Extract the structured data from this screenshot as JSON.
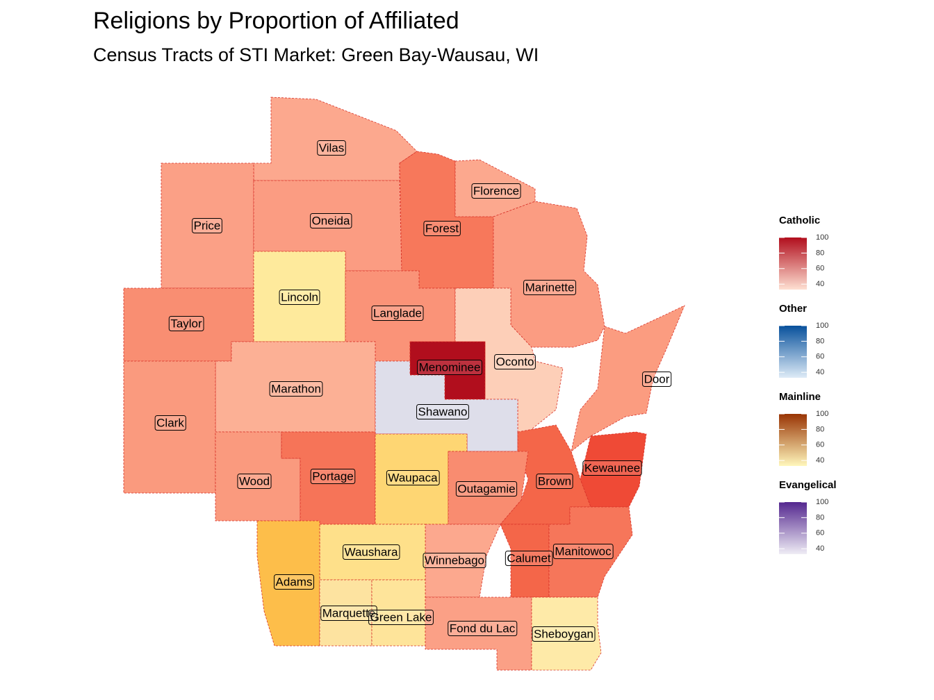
{
  "chart_data": {
    "type": "choropleth",
    "title": "Religions by Proportion of Affiliated",
    "subtitle": "Census Tracts of STI Market: Green Bay-Wausau, WI",
    "counties": [
      {
        "name": "Vilas",
        "color": "#fca88e"
      },
      {
        "name": "Price",
        "color": "#fba086"
      },
      {
        "name": "Oneida",
        "color": "#fb9c82"
      },
      {
        "name": "Forest",
        "color": "#f7785b"
      },
      {
        "name": "Florence",
        "color": "#fca88e"
      },
      {
        "name": "Marinette",
        "color": "#fb9c82"
      },
      {
        "name": "Lincoln",
        "color": "#feea9c"
      },
      {
        "name": "Langlade",
        "color": "#fa9378"
      },
      {
        "name": "Taylor",
        "color": "#f98e72"
      },
      {
        "name": "Oconto",
        "color": "#fdcfb8"
      },
      {
        "name": "Menominee",
        "color": "#b10e1d"
      },
      {
        "name": "Marathon",
        "color": "#fcb095"
      },
      {
        "name": "Clark",
        "color": "#fa9a7e"
      },
      {
        "name": "Shawano",
        "color": "#dedeea"
      },
      {
        "name": "Door",
        "color": "#fb9c80"
      },
      {
        "name": "Kewaunee",
        "color": "#ef4a36"
      },
      {
        "name": "Brown",
        "color": "#f46649"
      },
      {
        "name": "Wood",
        "color": "#fa9a7e"
      },
      {
        "name": "Portage",
        "color": "#f67458"
      },
      {
        "name": "Waupaca",
        "color": "#fed673"
      },
      {
        "name": "Outagamie",
        "color": "#f98c70"
      },
      {
        "name": "Calumet",
        "color": "#f46649"
      },
      {
        "name": "Manitowoc",
        "color": "#f6765a"
      },
      {
        "name": "Winnebago",
        "color": "#fca88e"
      },
      {
        "name": "Waushara",
        "color": "#fee08a"
      },
      {
        "name": "Adams",
        "color": "#fdbe4a"
      },
      {
        "name": "Marquette",
        "color": "#fde3a0"
      },
      {
        "name": "Green Lake",
        "color": "#fee49a"
      },
      {
        "name": "Fond du Lac",
        "color": "#fba086"
      },
      {
        "name": "Sheboygan",
        "color": "#feeaa8"
      }
    ],
    "legend": [
      {
        "name": "Catholic",
        "colors": [
          "#fee0d2",
          "#b10e1d"
        ],
        "ticks": [
          40,
          60,
          80,
          100
        ]
      },
      {
        "name": "Other",
        "colors": [
          "#deebf7",
          "#08519c"
        ],
        "ticks": [
          40,
          60,
          80,
          100
        ]
      },
      {
        "name": "Mainline",
        "colors": [
          "#fff7bc",
          "#993404"
        ],
        "ticks": [
          40,
          60,
          80,
          100
        ]
      },
      {
        "name": "Evangelical",
        "colors": [
          "#efedf5",
          "#54278f"
        ],
        "ticks": [
          40,
          60,
          80,
          100
        ]
      }
    ]
  }
}
